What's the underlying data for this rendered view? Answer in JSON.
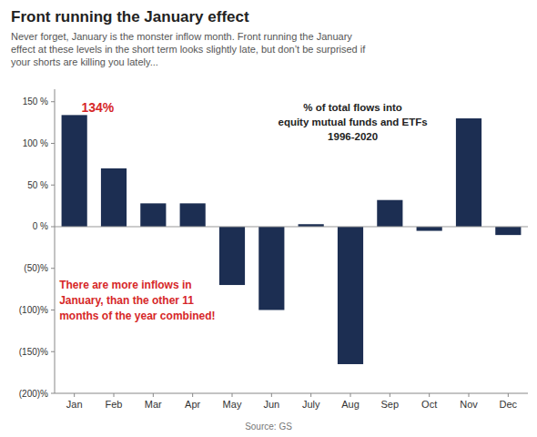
{
  "chart_data": {
    "type": "bar",
    "title": "Front running the January effect",
    "subtitle": "Never forget, January is the monster inflow month. Front running the January\neffect at these levels in the short term looks slightly late, but don’t be surprised if\nyour shorts are killing you lately...",
    "annotations": [
      "% of total flows into\nequity mutual funds and ETFs\n1996-2020",
      "There are more inflows in\nJanuary, than the other 11\nmonths of the year combined!",
      "134%"
    ],
    "source": "Source: GS",
    "categories": [
      "Jan",
      "Feb",
      "Mar",
      "Apr",
      "May",
      "Jun",
      "July",
      "Aug",
      "Sep",
      "Oct",
      "Nov",
      "Dec"
    ],
    "values": [
      134,
      70,
      28,
      28,
      -70,
      -100,
      3,
      -165,
      32,
      -5,
      130,
      -10
    ],
    "color": "#1c2e52",
    "ylim": [
      -200,
      165
    ],
    "yticks": [
      {
        "value": -200,
        "label": "(200)%"
      },
      {
        "value": -150,
        "label": "(150)%"
      },
      {
        "value": -100,
        "label": "(100)%"
      },
      {
        "value": -50,
        "label": "(50)%"
      },
      {
        "value": 0,
        "label": "0 %"
      },
      {
        "value": 50,
        "label": "50 %"
      },
      {
        "value": 100,
        "label": "100 %"
      },
      {
        "value": 150,
        "label": "150 %"
      }
    ],
    "grid": false
  }
}
